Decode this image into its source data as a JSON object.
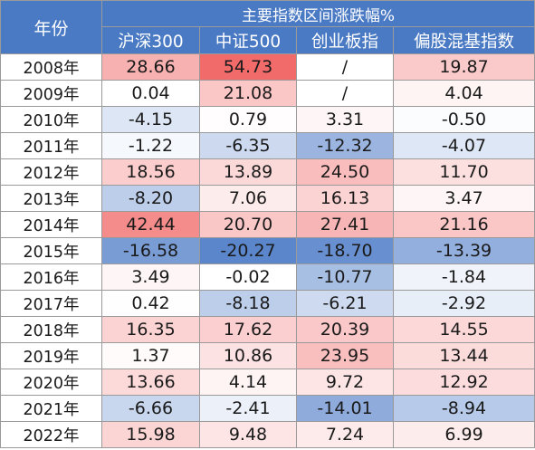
{
  "table": {
    "year_header": "年份",
    "group_header": "主要指数区间涨跌幅%",
    "columns": [
      "沪深300",
      "中证500",
      "创业板指",
      "偏股混基指数"
    ],
    "rows": [
      {
        "year": "2008年",
        "values": [
          "28.66",
          "54.73",
          "/",
          "19.87"
        ]
      },
      {
        "year": "2009年",
        "values": [
          "0.04",
          "21.08",
          "/",
          "4.04"
        ]
      },
      {
        "year": "2010年",
        "values": [
          "-4.15",
          "0.79",
          "3.31",
          "-0.50"
        ]
      },
      {
        "year": "2011年",
        "values": [
          "-1.22",
          "-6.35",
          "-12.32",
          "-4.07"
        ]
      },
      {
        "year": "2012年",
        "values": [
          "18.56",
          "13.89",
          "24.50",
          "11.70"
        ]
      },
      {
        "year": "2013年",
        "values": [
          "-8.20",
          "7.06",
          "16.13",
          "3.47"
        ]
      },
      {
        "year": "2014年",
        "values": [
          "42.44",
          "20.70",
          "27.41",
          "21.16"
        ]
      },
      {
        "year": "2015年",
        "values": [
          "-16.58",
          "-20.27",
          "-18.70",
          "-13.39"
        ]
      },
      {
        "year": "2016年",
        "values": [
          "3.49",
          "-0.02",
          "-10.77",
          "-1.84"
        ]
      },
      {
        "year": "2017年",
        "values": [
          "0.42",
          "-8.18",
          "-6.21",
          "-2.92"
        ]
      },
      {
        "year": "2018年",
        "values": [
          "16.35",
          "17.62",
          "20.39",
          "14.55"
        ]
      },
      {
        "year": "2019年",
        "values": [
          "1.37",
          "10.86",
          "23.95",
          "13.44"
        ]
      },
      {
        "year": "2020年",
        "values": [
          "13.66",
          "4.14",
          "9.72",
          "12.92"
        ]
      },
      {
        "year": "2021年",
        "values": [
          "-6.66",
          "-2.41",
          "-14.01",
          "-8.94"
        ]
      },
      {
        "year": "2022年",
        "values": [
          "15.98",
          "9.48",
          "7.24",
          "6.99"
        ]
      }
    ]
  },
  "colors": {
    "header_bg": "#4a7ac4",
    "header_text": "#ffffff",
    "positive_max": "#f26b6b",
    "neutral": "#ffffff",
    "negative_max": "#5b86cc"
  }
}
